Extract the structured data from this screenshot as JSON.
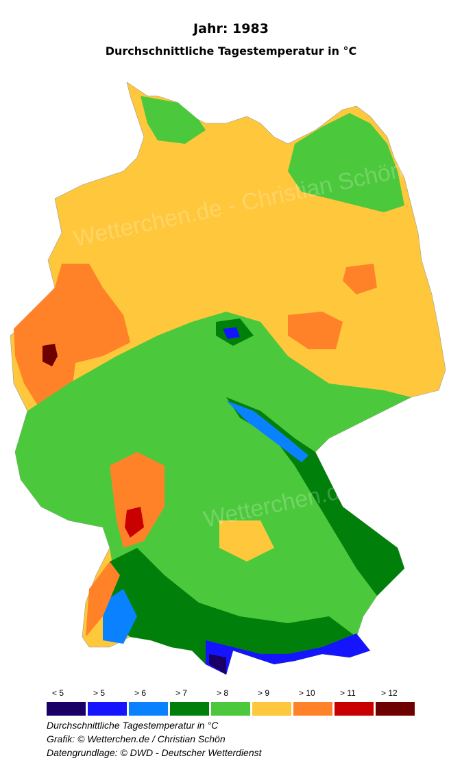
{
  "header": {
    "title": "Jahr: 1983",
    "subtitle": "Durchschnittliche Tagestemperatur in °C"
  },
  "watermark": "Wetterchen.de - Christian Schön",
  "legend": {
    "items": [
      {
        "label": "< 5",
        "color": "#1a0066"
      },
      {
        "label": "> 5",
        "color": "#1414ff"
      },
      {
        "label": "> 6",
        "color": "#0a82ff"
      },
      {
        "label": "> 7",
        "color": "#00800a"
      },
      {
        "label": "> 8",
        "color": "#4cc83c"
      },
      {
        "label": "> 9",
        "color": "#ffc83c"
      },
      {
        "label": "> 10",
        "color": "#ff8228"
      },
      {
        "label": "> 11",
        "color": "#c80000"
      },
      {
        "label": "> 12",
        "color": "#6e0000"
      }
    ]
  },
  "footer": {
    "lines": [
      "Durchschnittliche Tagestemperatur in °C",
      "Grafik: © Wetterchen.de / Christian Schön",
      "Datengrundlage: © DWD - Deutscher Wetterdienst"
    ]
  }
}
